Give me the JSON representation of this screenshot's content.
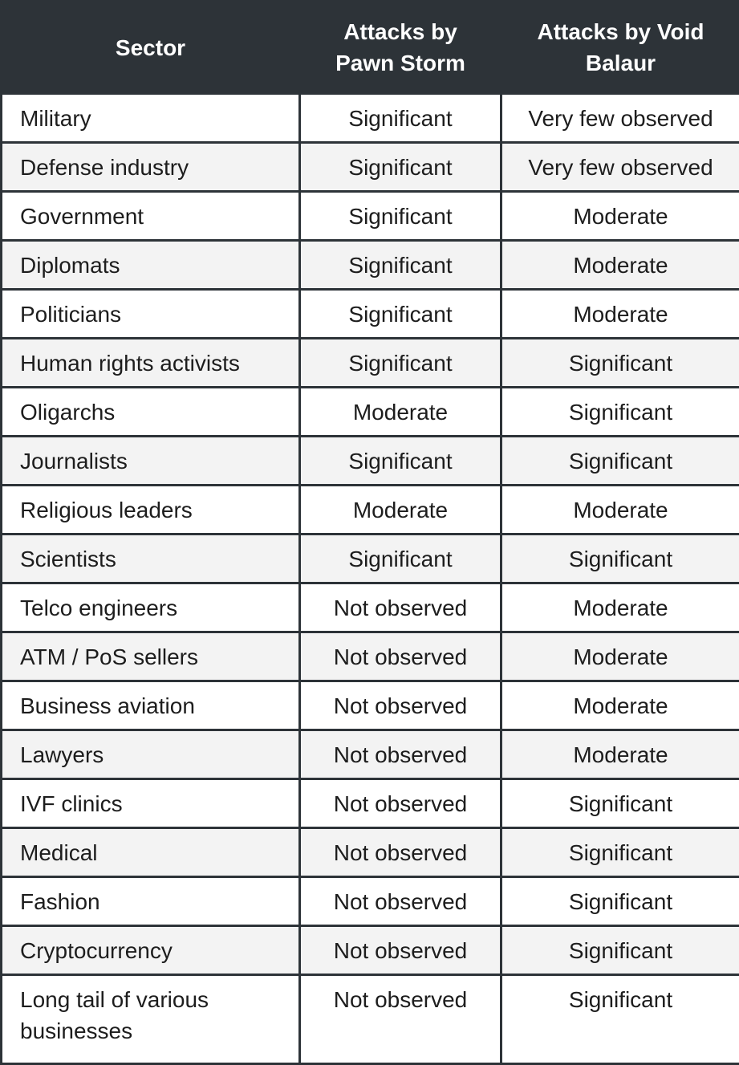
{
  "table": {
    "header": [
      "Sector",
      "Attacks by Pawn Storm",
      "Attacks by Void Balaur"
    ],
    "rows": [
      [
        "Military",
        "Significant",
        "Very few observed"
      ],
      [
        "Defense industry",
        "Significant",
        "Very few observed"
      ],
      [
        "Government",
        "Significant",
        "Moderate"
      ],
      [
        "Diplomats",
        "Significant",
        "Moderate"
      ],
      [
        "Politicians",
        "Significant",
        "Moderate"
      ],
      [
        "Human rights activists",
        "Significant",
        "Significant"
      ],
      [
        "Oligarchs",
        "Moderate",
        "Significant"
      ],
      [
        "Journalists",
        "Significant",
        "Significant"
      ],
      [
        "Religious leaders",
        "Moderate",
        "Moderate"
      ],
      [
        "Scientists",
        "Significant",
        "Significant"
      ],
      [
        "Telco engineers",
        "Not observed",
        "Moderate"
      ],
      [
        "ATM / PoS sellers",
        "Not observed",
        "Moderate"
      ],
      [
        "Business aviation",
        "Not observed",
        "Moderate"
      ],
      [
        "Lawyers",
        "Not observed",
        "Moderate"
      ],
      [
        "IVF clinics",
        "Not observed",
        "Significant"
      ],
      [
        "Medical",
        "Not observed",
        "Significant"
      ],
      [
        "Fashion",
        "Not observed",
        "Significant"
      ],
      [
        "Cryptocurrency",
        "Not observed",
        "Significant"
      ],
      [
        "Long tail of various businesses",
        "Not observed",
        "Significant"
      ]
    ]
  }
}
